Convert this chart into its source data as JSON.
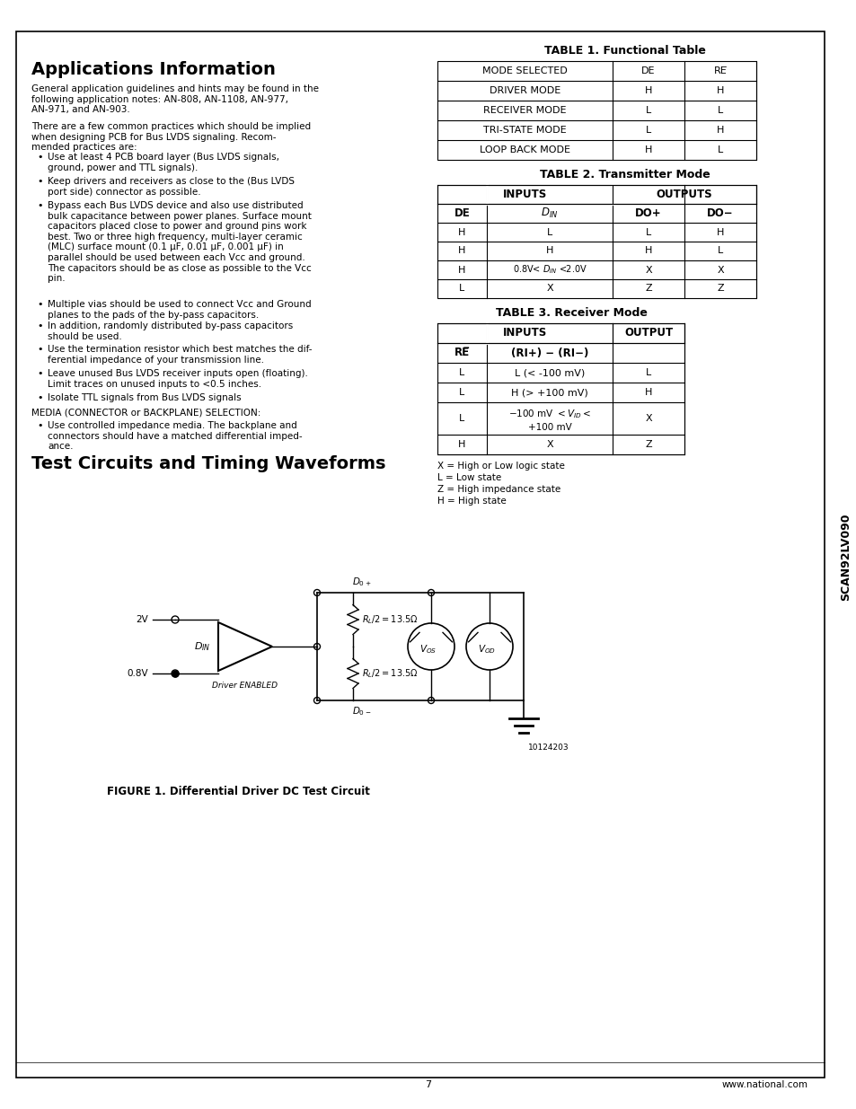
{
  "page_bg": "#ffffff",
  "border_color": "#000000",
  "title_appinfo": "Applications Information",
  "table1_title": "TABLE 1. Functional Table",
  "table1_rows": [
    [
      "MODE SELECTED",
      "DE",
      "RE"
    ],
    [
      "DRIVER MODE",
      "H",
      "H"
    ],
    [
      "RECEIVER MODE",
      "L",
      "L"
    ],
    [
      "TRI-STATE MODE",
      "L",
      "H"
    ],
    [
      "LOOP BACK MODE",
      "H",
      "L"
    ]
  ],
  "table2_title": "TABLE 2. Transmitter Mode",
  "table2_rows": [
    [
      "H",
      "L",
      "L",
      "H"
    ],
    [
      "H",
      "H",
      "H",
      "L"
    ],
    [
      "H",
      "0.8V< DIN <2.0V",
      "X",
      "X"
    ],
    [
      "L",
      "X",
      "Z",
      "Z"
    ]
  ],
  "table3_title": "TABLE 3. Receiver Mode",
  "table3_rows": [
    [
      "L",
      "L (< -100 mV)",
      "L"
    ],
    [
      "L",
      "H (> +100 mV)",
      "H"
    ],
    [
      "L",
      "-100 mV < VID <\n+100 mV",
      "X"
    ],
    [
      "H",
      "X",
      "Z"
    ]
  ],
  "legend": [
    "X = High or Low logic state",
    "L = Low state",
    "Z = High impedance state",
    "H = High state"
  ],
  "fig1_title": "FIGURE 1. Differential Driver DC Test Circuit",
  "sidebar_text": "SCAN92LV090",
  "page_number": "7",
  "website": "www.national.com"
}
